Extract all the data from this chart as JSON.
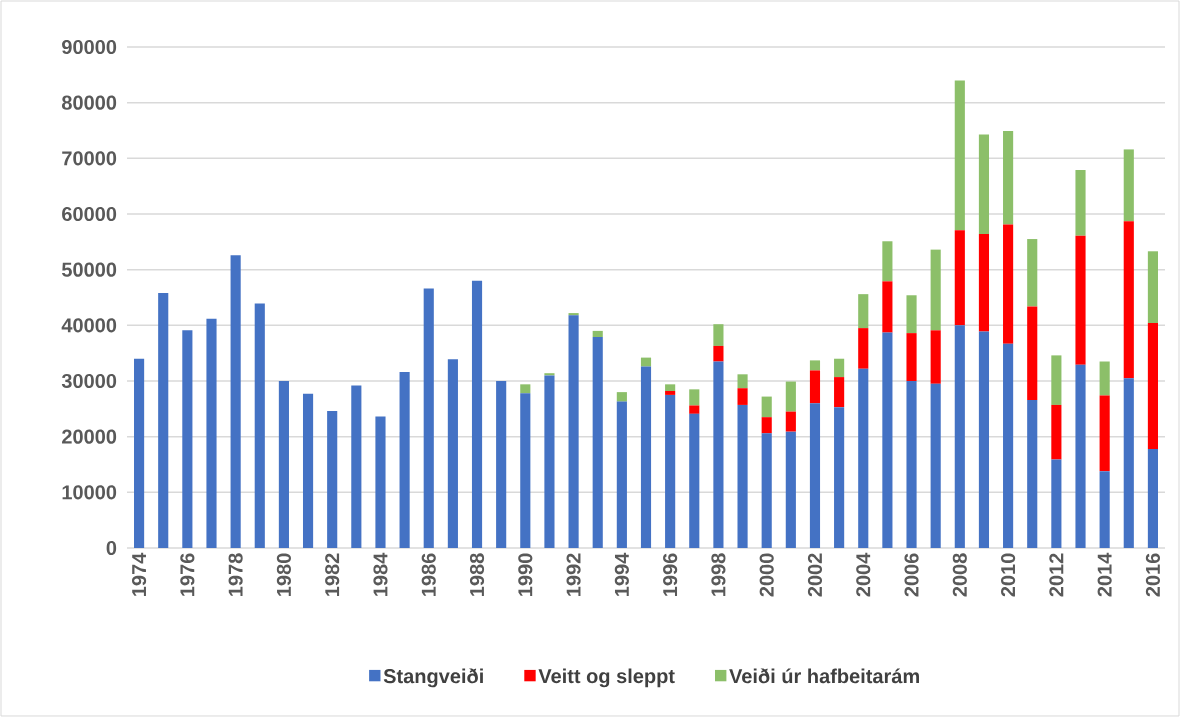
{
  "chart_data": {
    "type": "bar",
    "stacked": true,
    "categories": [
      "1974",
      null,
      "1976",
      null,
      "1978",
      null,
      "1980",
      null,
      "1982",
      null,
      "1984",
      null,
      "1986",
      null,
      "1988",
      null,
      "1990",
      null,
      "1992",
      null,
      "1994",
      null,
      "1996",
      null,
      "1998",
      null,
      "2000",
      null,
      "2002",
      null,
      "2004",
      null,
      "2006",
      null,
      "2008",
      null,
      "2010",
      null,
      "2012",
      null,
      "2014",
      null,
      "2016"
    ],
    "series": [
      {
        "name": "Stangveiði",
        "color": "#4472c4",
        "values": [
          34000,
          45800,
          39100,
          41200,
          52600,
          43900,
          30000,
          27700,
          24600,
          29200,
          23600,
          31600,
          46600,
          33900,
          48000,
          30000,
          27800,
          31000,
          41800,
          37900,
          26300,
          32600,
          27500,
          24100,
          33500,
          25700,
          20600,
          20900,
          26000,
          25300,
          32200,
          38700,
          30000,
          29500,
          40000,
          38900,
          36700,
          26600,
          15900,
          32900,
          13800,
          30500,
          17800
        ]
      },
      {
        "name": "Veitt og sleppt",
        "color": "#ff0000",
        "values": [
          0,
          0,
          0,
          0,
          0,
          0,
          0,
          0,
          0,
          0,
          0,
          0,
          0,
          0,
          0,
          0,
          0,
          0,
          0,
          0,
          0,
          0,
          700,
          1500,
          2800,
          3000,
          2900,
          3600,
          5900,
          5400,
          7300,
          9200,
          8600,
          9600,
          17100,
          17500,
          21400,
          16800,
          9800,
          23200,
          13600,
          28200,
          22600
        ]
      },
      {
        "name": "Veiði úr hafbeitarám",
        "color": "#8cbf69",
        "values": [
          0,
          0,
          0,
          0,
          0,
          0,
          0,
          0,
          0,
          0,
          0,
          0,
          0,
          0,
          0,
          0,
          1600,
          400,
          400,
          1100,
          1700,
          1600,
          1200,
          2900,
          3900,
          2500,
          3700,
          5400,
          1800,
          3300,
          6100,
          7200,
          6800,
          14500,
          26900,
          17900,
          16800,
          12100,
          8900,
          11800,
          6100,
          12900,
          12900
        ]
      }
    ],
    "ylim": [
      0,
      90000
    ],
    "yticks": [
      0,
      10000,
      20000,
      30000,
      40000,
      50000,
      60000,
      70000,
      80000,
      90000
    ],
    "grid": "y",
    "legend": "bottom"
  }
}
